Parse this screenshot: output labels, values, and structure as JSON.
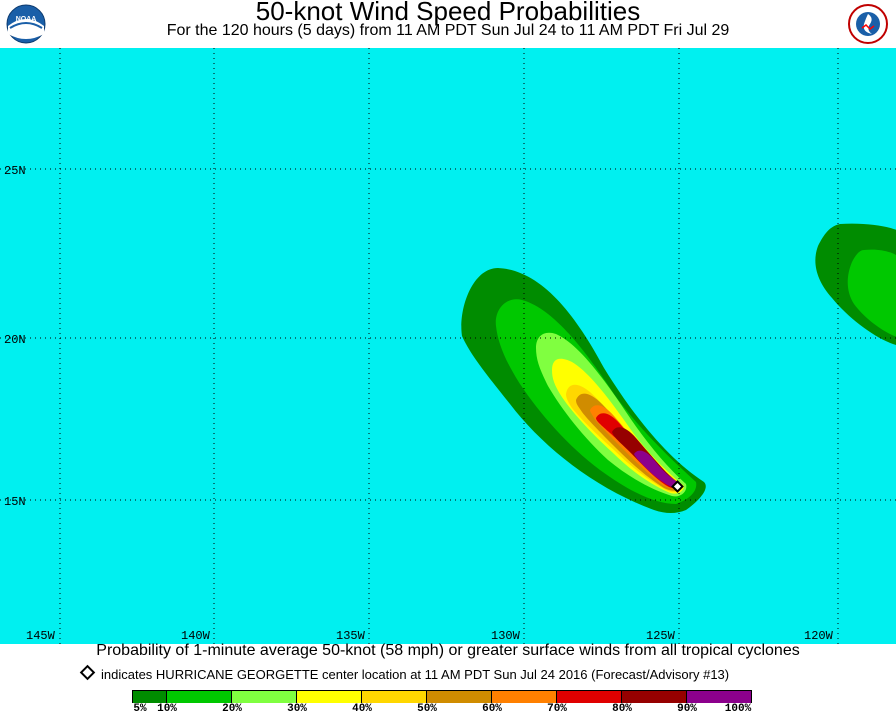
{
  "header": {
    "title": "50-knot Wind Speed Probabilities",
    "subtitle": "For the 120 hours (5 days) from 11 AM PDT Sun Jul 24 to 11 AM PDT Fri Jul 29",
    "left_logo": "noaa-logo",
    "right_logo": "national-weather-service-logo"
  },
  "map": {
    "background_color": "#00F0F0",
    "grid": "dotted",
    "lon_labels": [
      "145W",
      "140W",
      "135W",
      "130W",
      "125W",
      "120W"
    ],
    "lat_labels": [
      "25N",
      "20N",
      "15N"
    ],
    "storm_marker": {
      "icon": "diamond-marker-icon",
      "lon": -124.8,
      "lat": 15.4
    }
  },
  "caption": "Probability of 1-minute average 50-knot (58 mph) or greater surface winds from all tropical cyclones",
  "legend_note": "indicates HURRICANE GEORGETTE center location at 11 AM PDT Sun Jul 24 2016 (Forecast/Advisory #13)",
  "colorbar": {
    "colors": [
      "#008C00",
      "#00C800",
      "#80FF40",
      "#FFFF00",
      "#FFD700",
      "#D08C00",
      "#FF8000",
      "#E00000",
      "#960000",
      "#8C008C"
    ],
    "labels": [
      "5%",
      "10%",
      "20%",
      "30%",
      "40%",
      "50%",
      "60%",
      "70%",
      "80%",
      "90%",
      "100%"
    ]
  }
}
